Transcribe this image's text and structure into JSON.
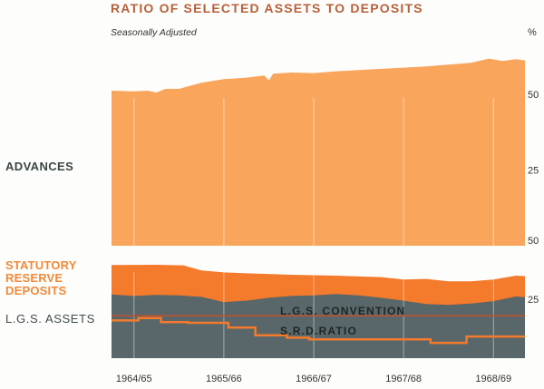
{
  "title": "RATIO OF SELECTED ASSETS TO DEPOSITS",
  "subtitle": "Seasonally Adjusted",
  "unit": "%",
  "labels": {
    "advances": "ADVANCES",
    "srd": [
      "STATUTORY",
      "RESERVE",
      "DEPOSITS"
    ],
    "lgs": "L.G.S. ASSETS",
    "lgs_convention": "L.G.S. CONVENTION",
    "srd_ratio": "S.R.D.RATIO"
  },
  "colors": {
    "advances": "#f9a55c",
    "srd": "#f47a2c",
    "lgs": "#59676a",
    "convention_line": "#c0502a",
    "srd_ratio_line": "#f47a2c",
    "grid": "#ffffff"
  },
  "chart_data": [
    {
      "type": "area",
      "name": "advances-panel",
      "categories": [
        "1964/65",
        "1965/66",
        "1966/67",
        "1967/68",
        "1968/69"
      ],
      "yticks": [
        25,
        50
      ],
      "ylim": [
        0,
        62
      ],
      "grid": true,
      "series": [
        {
          "name": "ADVANCES",
          "x": [
            0.0,
            0.25,
            0.4,
            0.5,
            0.6,
            0.75,
            1.0,
            1.25,
            1.5,
            1.7,
            1.75,
            1.8,
            2.0,
            2.25,
            2.5,
            2.75,
            3.0,
            3.25,
            3.5,
            3.75,
            4.0,
            4.2,
            4.35,
            4.5,
            4.6
          ],
          "values": [
            51.2,
            51.0,
            51.2,
            50.6,
            51.8,
            51.8,
            53.8,
            55.0,
            55.5,
            56.2,
            54.6,
            56.8,
            57.2,
            57.0,
            57.6,
            58.0,
            58.4,
            58.8,
            59.2,
            59.8,
            60.4,
            61.8,
            61.0,
            61.6,
            61.2
          ]
        }
      ]
    },
    {
      "type": "area",
      "name": "liquid-assets-panel",
      "categories": [
        "1964/65",
        "1965/66",
        "1966/67",
        "1967/68",
        "1968/69"
      ],
      "yticks": [
        25,
        50
      ],
      "ylim": [
        0,
        50
      ],
      "grid": true,
      "series": [
        {
          "name": "STATUTORY RESERVE DEPOSITS",
          "x": [
            0.0,
            0.5,
            0.8,
            1.0,
            1.25,
            1.5,
            2.0,
            2.5,
            3.0,
            3.25,
            3.5,
            3.75,
            4.0,
            4.25,
            4.5,
            4.6
          ],
          "values": [
            39.5,
            39.6,
            39.4,
            37.2,
            36.4,
            36.0,
            35.4,
            35.0,
            34.4,
            33.4,
            33.6,
            32.6,
            32.6,
            33.4,
            35.0,
            34.8
          ]
        },
        {
          "name": "L.G.S. ASSETS",
          "x": [
            0.0,
            0.25,
            0.5,
            0.75,
            1.0,
            1.25,
            1.5,
            1.75,
            2.0,
            2.25,
            2.5,
            2.75,
            3.0,
            3.25,
            3.5,
            3.75,
            4.0,
            4.25,
            4.5,
            4.6
          ],
          "values": [
            27.0,
            26.4,
            26.8,
            26.6,
            26.0,
            23.8,
            24.4,
            25.6,
            26.4,
            26.6,
            27.2,
            26.6,
            25.6,
            24.4,
            23.0,
            22.6,
            23.2,
            24.2,
            26.2,
            25.8
          ]
        },
        {
          "name": "L.G.S. CONVENTION",
          "kind": "line",
          "x": [
            0.0,
            4.6
          ],
          "values": [
            18.0,
            18.0
          ]
        },
        {
          "name": "S.R.D.RATIO",
          "kind": "step",
          "x": [
            0.0,
            0.3,
            0.55,
            0.85,
            1.3,
            1.6,
            1.95,
            2.2,
            3.25,
            3.55,
            3.95,
            4.6
          ],
          "values": [
            16.0,
            17.0,
            15.3,
            15.0,
            13.0,
            9.7,
            8.7,
            8.0,
            8.0,
            6.5,
            9.2,
            9.2
          ]
        }
      ]
    }
  ]
}
